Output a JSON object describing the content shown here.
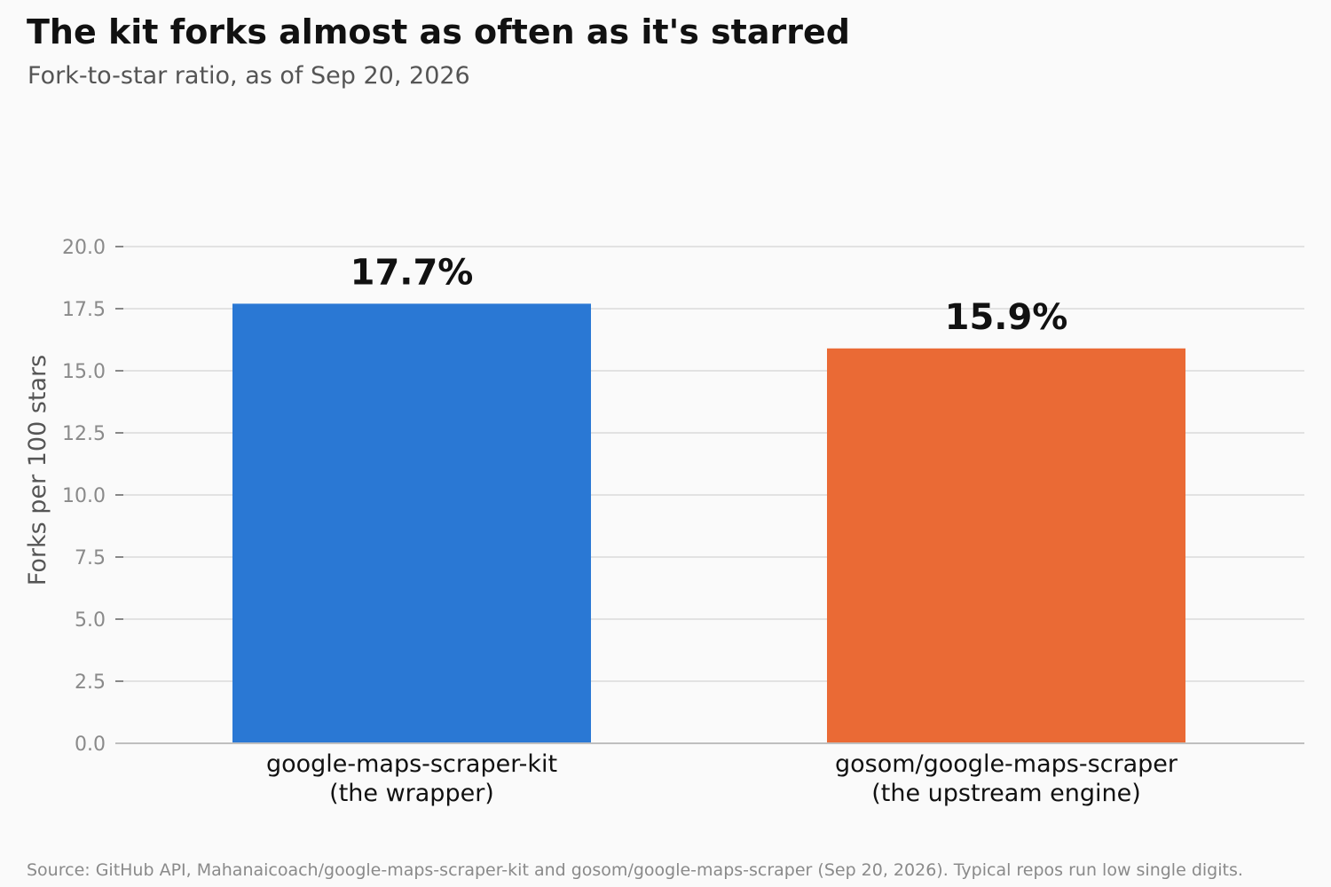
{
  "header": {
    "title": "The kit forks almost as often as it's starred",
    "subtitle": "Fork-to-star ratio, as of Sep 20, 2026"
  },
  "footer": {
    "source": "Source: GitHub API, Mahanaicoach/google-maps-scraper-kit and gosom/google-maps-scraper (Sep 20, 2026). Typical repos run low single digits."
  },
  "chart_data": {
    "type": "bar",
    "categories": [
      [
        "google-maps-scraper-kit",
        "(the wrapper)"
      ],
      [
        "gosom/google-maps-scraper",
        "(the upstream engine)"
      ]
    ],
    "values": [
      17.7,
      15.9
    ],
    "value_labels": [
      "17.7%",
      "15.9%"
    ],
    "colors": [
      "#2a78d4",
      "#ea6a35"
    ],
    "ylabel": "Forks per 100 stars",
    "ylim": [
      0,
      20
    ],
    "yticks": [
      "0.0",
      "2.5",
      "5.0",
      "7.5",
      "10.0",
      "12.5",
      "15.0",
      "17.5",
      "20.0"
    ],
    "grid": true,
    "legend": "none"
  }
}
